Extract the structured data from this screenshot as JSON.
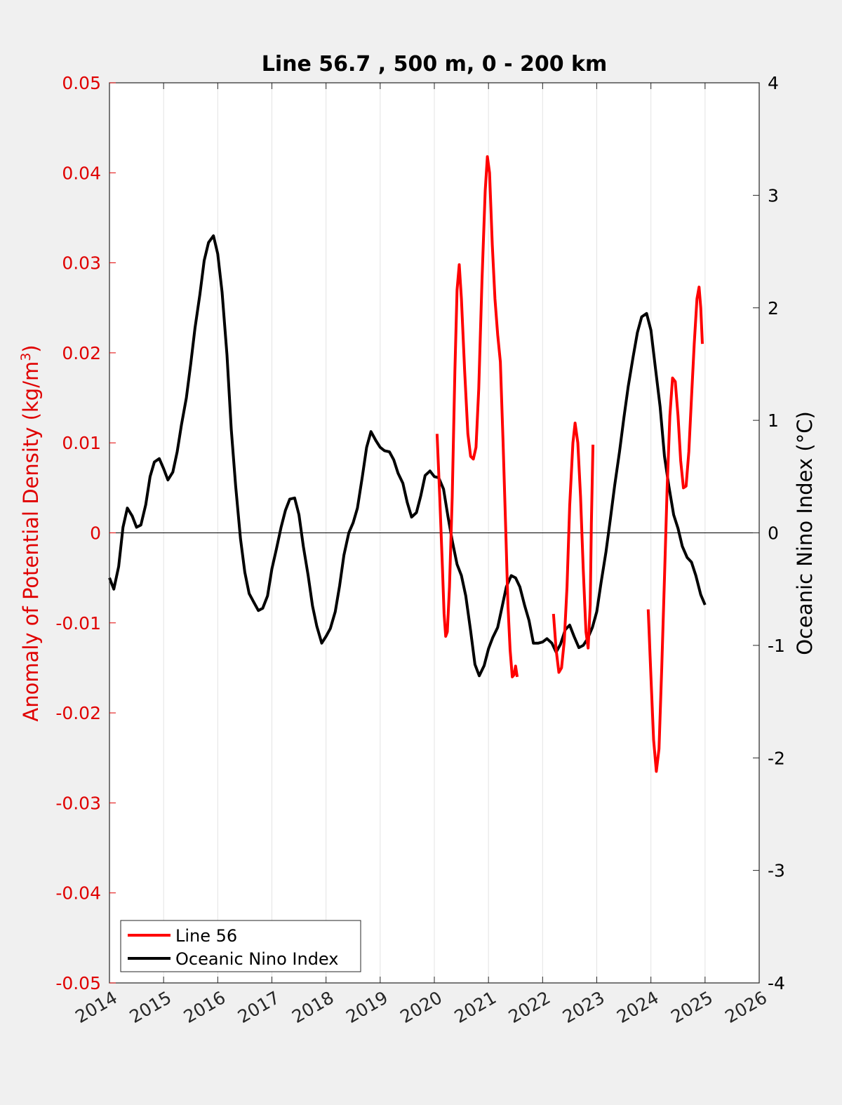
{
  "chart_data": {
    "type": "line",
    "title": "Line 56.7 , 500 m, 0 - 200 km",
    "xlim": [
      2014,
      2026
    ],
    "x_ticks": [
      "2014",
      "2015",
      "2016",
      "2017",
      "2018",
      "2019",
      "2020",
      "2021",
      "2022",
      "2023",
      "2024",
      "2025",
      "2026"
    ],
    "ylabel_left": {
      "main": "Anomaly of Potential Density (kg/m",
      "sup": "3",
      "close": ")"
    },
    "ylim_left": [
      -0.05,
      0.05
    ],
    "y_ticks_left": [
      "-0.05",
      "-0.04",
      "-0.03",
      "-0.02",
      "-0.01",
      "0",
      "0.01",
      "0.02",
      "0.03",
      "0.04",
      "0.05"
    ],
    "ylabel_right": "Oceanic Nino Index (°C)",
    "ylim_right": [
      -4,
      4
    ],
    "y_ticks_right": [
      "-4",
      "-3",
      "-2",
      "-1",
      "0",
      "1",
      "2",
      "3",
      "4"
    ],
    "grid": "x-only",
    "legend_position": "bottom-left",
    "series": [
      {
        "name": "Line 56",
        "axis": "left",
        "color": "#ff0000",
        "segments": [
          [
            [
              2020.05,
              0.011
            ],
            [
              2020.1,
              0.004
            ],
            [
              2020.15,
              -0.004
            ],
            [
              2020.18,
              -0.009
            ],
            [
              2020.21,
              -0.0115
            ],
            [
              2020.24,
              -0.011
            ],
            [
              2020.28,
              -0.006
            ],
            [
              2020.33,
              0.004
            ],
            [
              2020.38,
              0.018
            ],
            [
              2020.42,
              0.027
            ],
            [
              2020.46,
              0.0298
            ],
            [
              2020.5,
              0.026
            ],
            [
              2020.56,
              0.018
            ],
            [
              2020.62,
              0.011
            ],
            [
              2020.67,
              0.0085
            ],
            [
              2020.72,
              0.0082
            ],
            [
              2020.77,
              0.0095
            ],
            [
              2020.82,
              0.016
            ],
            [
              2020.88,
              0.028
            ],
            [
              2020.94,
              0.038
            ],
            [
              2020.98,
              0.0418
            ],
            [
              2021.02,
              0.04
            ],
            [
              2021.07,
              0.032
            ],
            [
              2021.12,
              0.026
            ],
            [
              2021.17,
              0.022
            ],
            [
              2021.22,
              0.019
            ],
            [
              2021.27,
              0.01
            ],
            [
              2021.32,
              0.0
            ],
            [
              2021.36,
              -0.008
            ],
            [
              2021.4,
              -0.013
            ],
            [
              2021.44,
              -0.016
            ],
            [
              2021.47,
              -0.0158
            ],
            [
              2021.5,
              -0.0148
            ],
            [
              2021.53,
              -0.016
            ]
          ],
          [
            [
              2022.2,
              -0.009
            ],
            [
              2022.25,
              -0.013
            ],
            [
              2022.3,
              -0.0155
            ],
            [
              2022.35,
              -0.015
            ],
            [
              2022.4,
              -0.012
            ],
            [
              2022.45,
              -0.006
            ],
            [
              2022.5,
              0.003
            ],
            [
              2022.56,
              0.01
            ],
            [
              2022.6,
              0.0122
            ],
            [
              2022.65,
              0.01
            ],
            [
              2022.7,
              0.004
            ],
            [
              2022.75,
              -0.004
            ],
            [
              2022.8,
              -0.011
            ],
            [
              2022.84,
              -0.0128
            ],
            [
              2022.88,
              -0.008
            ],
            [
              2022.9,
              0.001
            ],
            [
              2022.93,
              0.0098
            ]
          ],
          [
            [
              2023.95,
              -0.0085
            ],
            [
              2024.0,
              -0.016
            ],
            [
              2024.05,
              -0.023
            ],
            [
              2024.1,
              -0.0265
            ],
            [
              2024.15,
              -0.024
            ],
            [
              2024.2,
              -0.015
            ],
            [
              2024.25,
              -0.005
            ],
            [
              2024.3,
              0.005
            ],
            [
              2024.35,
              0.013
            ],
            [
              2024.4,
              0.0172
            ],
            [
              2024.45,
              0.0168
            ],
            [
              2024.5,
              0.013
            ],
            [
              2024.55,
              0.008
            ],
            [
              2024.6,
              0.005
            ],
            [
              2024.65,
              0.0052
            ],
            [
              2024.7,
              0.009
            ],
            [
              2024.75,
              0.015
            ],
            [
              2024.8,
              0.021
            ],
            [
              2024.85,
              0.026
            ],
            [
              2024.89,
              0.0273
            ],
            [
              2024.92,
              0.025
            ],
            [
              2024.95,
              0.021
            ]
          ]
        ]
      },
      {
        "name": "Oceanic Nino Index",
        "axis": "right",
        "color": "#000000",
        "segments": [
          [
            [
              2014.0,
              -0.4
            ],
            [
              2014.08,
              -0.5
            ],
            [
              2014.17,
              -0.3
            ],
            [
              2014.25,
              0.05
            ],
            [
              2014.33,
              0.22
            ],
            [
              2014.42,
              0.15
            ],
            [
              2014.5,
              0.05
            ],
            [
              2014.58,
              0.07
            ],
            [
              2014.67,
              0.25
            ],
            [
              2014.75,
              0.5
            ],
            [
              2014.83,
              0.63
            ],
            [
              2014.92,
              0.66
            ],
            [
              2015.0,
              0.57
            ],
            [
              2015.08,
              0.47
            ],
            [
              2015.17,
              0.54
            ],
            [
              2015.25,
              0.72
            ],
            [
              2015.33,
              0.96
            ],
            [
              2015.42,
              1.2
            ],
            [
              2015.5,
              1.5
            ],
            [
              2015.58,
              1.82
            ],
            [
              2015.67,
              2.12
            ],
            [
              2015.75,
              2.42
            ],
            [
              2015.83,
              2.58
            ],
            [
              2015.92,
              2.64
            ],
            [
              2016.0,
              2.48
            ],
            [
              2016.08,
              2.14
            ],
            [
              2016.17,
              1.58
            ],
            [
              2016.25,
              0.92
            ],
            [
              2016.33,
              0.42
            ],
            [
              2016.42,
              -0.05
            ],
            [
              2016.5,
              -0.35
            ],
            [
              2016.58,
              -0.54
            ],
            [
              2016.67,
              -0.62
            ],
            [
              2016.75,
              -0.69
            ],
            [
              2016.83,
              -0.67
            ],
            [
              2016.92,
              -0.56
            ],
            [
              2017.0,
              -0.32
            ],
            [
              2017.08,
              -0.15
            ],
            [
              2017.17,
              0.05
            ],
            [
              2017.25,
              0.2
            ],
            [
              2017.33,
              0.3
            ],
            [
              2017.42,
              0.31
            ],
            [
              2017.5,
              0.16
            ],
            [
              2017.58,
              -0.12
            ],
            [
              2017.67,
              -0.38
            ],
            [
              2017.75,
              -0.65
            ],
            [
              2017.83,
              -0.83
            ],
            [
              2017.92,
              -0.98
            ],
            [
              2018.0,
              -0.92
            ],
            [
              2018.08,
              -0.85
            ],
            [
              2018.17,
              -0.7
            ],
            [
              2018.25,
              -0.47
            ],
            [
              2018.33,
              -0.2
            ],
            [
              2018.42,
              0.0
            ],
            [
              2018.5,
              0.09
            ],
            [
              2018.58,
              0.22
            ],
            [
              2018.67,
              0.5
            ],
            [
              2018.75,
              0.76
            ],
            [
              2018.83,
              0.9
            ],
            [
              2018.92,
              0.82
            ],
            [
              2019.0,
              0.76
            ],
            [
              2019.08,
              0.73
            ],
            [
              2019.17,
              0.72
            ],
            [
              2019.25,
              0.65
            ],
            [
              2019.33,
              0.53
            ],
            [
              2019.42,
              0.44
            ],
            [
              2019.5,
              0.27
            ],
            [
              2019.58,
              0.14
            ],
            [
              2019.67,
              0.18
            ],
            [
              2019.75,
              0.33
            ],
            [
              2019.83,
              0.51
            ],
            [
              2019.92,
              0.55
            ],
            [
              2020.0,
              0.5
            ],
            [
              2020.08,
              0.49
            ],
            [
              2020.17,
              0.39
            ],
            [
              2020.25,
              0.15
            ],
            [
              2020.33,
              -0.07
            ],
            [
              2020.42,
              -0.28
            ],
            [
              2020.5,
              -0.38
            ],
            [
              2020.58,
              -0.56
            ],
            [
              2020.67,
              -0.87
            ],
            [
              2020.75,
              -1.17
            ],
            [
              2020.83,
              -1.27
            ],
            [
              2020.92,
              -1.18
            ],
            [
              2021.0,
              -1.03
            ],
            [
              2021.08,
              -0.93
            ],
            [
              2021.17,
              -0.84
            ],
            [
              2021.25,
              -0.66
            ],
            [
              2021.33,
              -0.48
            ],
            [
              2021.42,
              -0.38
            ],
            [
              2021.5,
              -0.4
            ],
            [
              2021.58,
              -0.48
            ],
            [
              2021.67,
              -0.65
            ],
            [
              2021.75,
              -0.78
            ],
            [
              2021.83,
              -0.98
            ],
            [
              2021.92,
              -0.98
            ],
            [
              2022.0,
              -0.97
            ],
            [
              2022.08,
              -0.94
            ],
            [
              2022.17,
              -0.98
            ],
            [
              2022.25,
              -1.06
            ],
            [
              2022.33,
              -0.99
            ],
            [
              2022.42,
              -0.86
            ],
            [
              2022.5,
              -0.82
            ],
            [
              2022.58,
              -0.92
            ],
            [
              2022.67,
              -1.02
            ],
            [
              2022.75,
              -1.0
            ],
            [
              2022.83,
              -0.94
            ],
            [
              2022.92,
              -0.84
            ],
            [
              2023.0,
              -0.7
            ],
            [
              2023.08,
              -0.44
            ],
            [
              2023.17,
              -0.17
            ],
            [
              2023.25,
              0.12
            ],
            [
              2023.33,
              0.42
            ],
            [
              2023.42,
              0.72
            ],
            [
              2023.5,
              1.02
            ],
            [
              2023.58,
              1.3
            ],
            [
              2023.67,
              1.56
            ],
            [
              2023.75,
              1.78
            ],
            [
              2023.83,
              1.92
            ],
            [
              2023.92,
              1.95
            ],
            [
              2024.0,
              1.8
            ],
            [
              2024.08,
              1.48
            ],
            [
              2024.17,
              1.12
            ],
            [
              2024.25,
              0.68
            ],
            [
              2024.33,
              0.42
            ],
            [
              2024.42,
              0.16
            ],
            [
              2024.5,
              0.04
            ],
            [
              2024.58,
              -0.12
            ],
            [
              2024.67,
              -0.22
            ],
            [
              2024.75,
              -0.26
            ],
            [
              2024.83,
              -0.38
            ],
            [
              2024.92,
              -0.55
            ],
            [
              2025.0,
              -0.64
            ]
          ]
        ]
      }
    ]
  }
}
